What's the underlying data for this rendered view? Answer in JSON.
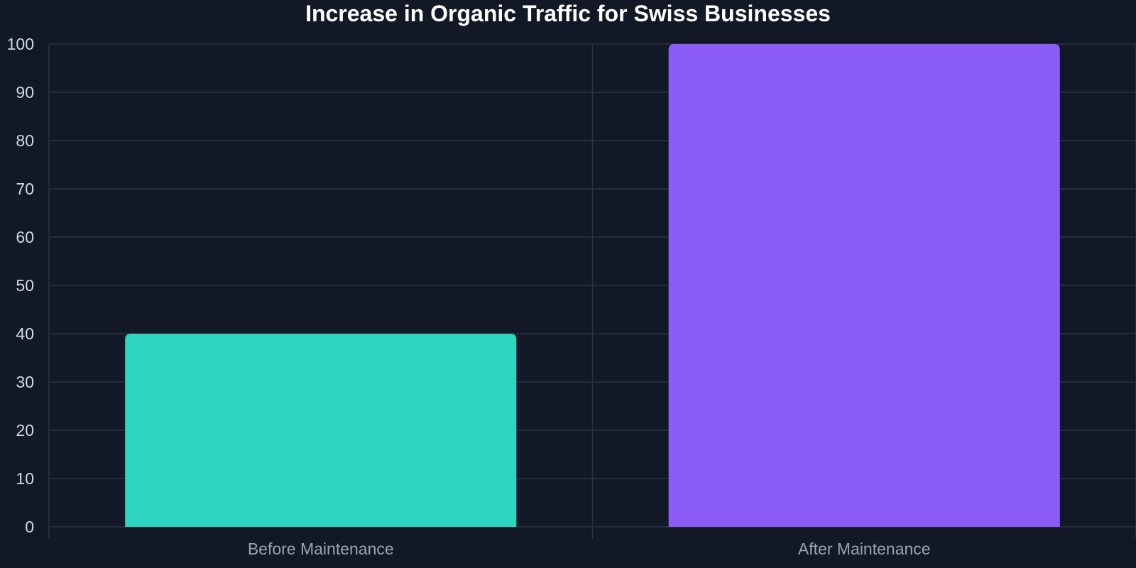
{
  "chart_data": {
    "type": "bar",
    "title": "Increase in Organic Traffic for Swiss Businesses",
    "xlabel": "",
    "ylabel": "",
    "categories": [
      "Before Maintenance",
      "After Maintenance"
    ],
    "values": [
      40,
      100
    ],
    "colors": [
      "#2dd4bf",
      "#8b5cf6"
    ],
    "ylim": [
      0,
      100
    ],
    "yticks": [
      0,
      10,
      20,
      30,
      40,
      50,
      60,
      70,
      80,
      90,
      100
    ],
    "grid": true,
    "legend": "none"
  },
  "theme": {
    "background": "#121826",
    "grid": "#2a3242",
    "title_color": "#ffffff",
    "y_tick_color": "#d3d8e0",
    "x_tick_color": "#9ca3af"
  }
}
